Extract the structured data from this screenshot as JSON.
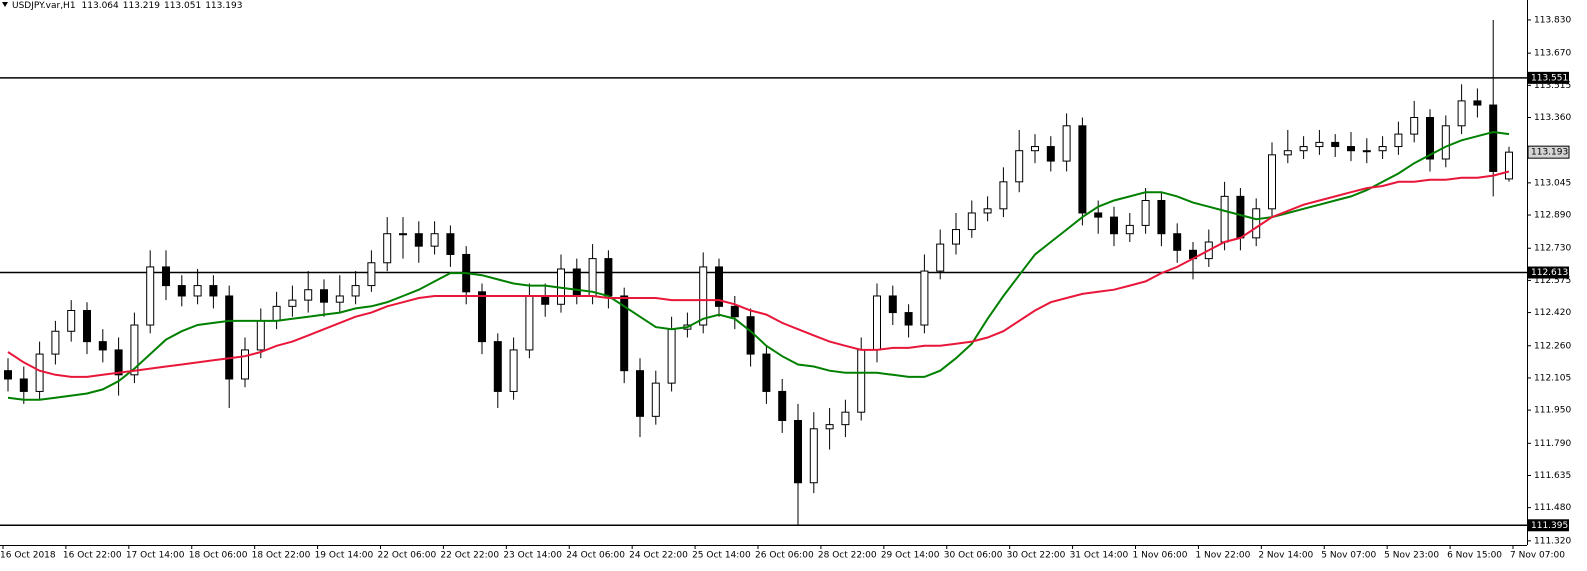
{
  "chart_data": {
    "type": "candlestick",
    "title": "USDJPY.var,H1",
    "readout": [
      113.064,
      113.219,
      113.051,
      113.193
    ],
    "categories": [
      "16 Oct 2018",
      "16 Oct 22:00",
      "17 Oct 14:00",
      "18 Oct 06:00",
      "18 Oct 22:00",
      "19 Oct 14:00",
      "22 Oct 06:00",
      "22 Oct 22:00",
      "23 Oct 14:00",
      "24 Oct 06:00",
      "24 Oct 22:00",
      "25 Oct 14:00",
      "26 Oct 06:00",
      "28 Oct 22:00",
      "29 Oct 14:00",
      "30 Oct 06:00",
      "30 Oct 22:00",
      "31 Oct 14:00",
      "1 Nov 06:00",
      "1 Nov 22:00",
      "2 Nov 14:00",
      "5 Nov 07:00",
      "5 Nov 23:00",
      "6 Nov 15:00",
      "7 Nov 07:00"
    ],
    "open": [
      112.14,
      112.1,
      112.04,
      112.22,
      112.33,
      112.43,
      112.28,
      112.24,
      112.12,
      112.36,
      112.64,
      112.55,
      112.5,
      112.55,
      112.5,
      112.1,
      112.24,
      112.38,
      112.45,
      112.48,
      112.53,
      112.47,
      112.5,
      112.55,
      112.66,
      112.8,
      112.8,
      112.74,
      112.8,
      112.7,
      112.52,
      112.28,
      112.04,
      112.24,
      112.5,
      112.46,
      112.63,
      112.5,
      112.68,
      112.5,
      112.14,
      111.92,
      112.08,
      112.34,
      112.36,
      112.64,
      112.45,
      112.4,
      112.22,
      112.04,
      111.9,
      111.6,
      111.86,
      111.88,
      111.94,
      112.24,
      112.5,
      112.42,
      112.36,
      112.62,
      112.75,
      112.82,
      112.9,
      112.92,
      113.05,
      113.2,
      113.22,
      113.15,
      113.32,
      112.9,
      112.88,
      112.8,
      112.84,
      112.96,
      112.8,
      112.72,
      112.68,
      112.76,
      112.98,
      112.78,
      112.92,
      113.18,
      113.2,
      113.22,
      113.24,
      113.22,
      113.2,
      113.2,
      113.22,
      113.28,
      113.36,
      113.16,
      113.32,
      113.44,
      113.42,
      113.064
    ],
    "high": [
      112.2,
      112.16,
      112.28,
      112.38,
      112.48,
      112.47,
      112.34,
      112.3,
      112.42,
      112.72,
      112.72,
      112.6,
      112.63,
      112.6,
      112.55,
      112.3,
      112.44,
      112.52,
      112.55,
      112.62,
      112.58,
      112.6,
      112.62,
      112.72,
      112.88,
      112.88,
      112.86,
      112.86,
      112.84,
      112.74,
      112.56,
      112.32,
      112.3,
      112.56,
      112.56,
      112.7,
      112.68,
      112.75,
      112.72,
      112.54,
      112.2,
      112.14,
      112.4,
      112.42,
      112.71,
      112.68,
      112.5,
      112.44,
      112.26,
      112.1,
      111.98,
      111.94,
      111.96,
      112.0,
      112.3,
      112.56,
      112.55,
      112.46,
      112.7,
      112.82,
      112.9,
      112.96,
      112.98,
      113.12,
      113.3,
      113.28,
      113.27,
      113.38,
      113.36,
      112.96,
      112.93,
      112.9,
      113.02,
      113.0,
      112.85,
      112.76,
      112.82,
      113.05,
      113.02,
      112.97,
      113.24,
      113.3,
      113.27,
      113.3,
      113.28,
      113.29,
      113.26,
      113.27,
      113.34,
      113.44,
      113.4,
      113.37,
      113.52,
      113.5,
      113.83,
      113.219
    ],
    "low": [
      112.04,
      111.98,
      112.0,
      112.17,
      112.28,
      112.22,
      112.18,
      112.02,
      112.08,
      112.32,
      112.48,
      112.45,
      112.46,
      112.44,
      111.96,
      112.06,
      112.2,
      112.34,
      112.4,
      112.42,
      112.4,
      112.42,
      112.46,
      112.52,
      112.62,
      112.68,
      112.66,
      112.7,
      112.64,
      112.46,
      112.22,
      111.96,
      112.0,
      112.2,
      112.4,
      112.42,
      112.46,
      112.46,
      112.44,
      112.08,
      111.82,
      111.88,
      112.04,
      112.3,
      112.32,
      112.4,
      112.34,
      112.16,
      111.98,
      111.84,
      111.395,
      111.55,
      111.76,
      111.82,
      111.9,
      112.18,
      112.36,
      112.3,
      112.32,
      112.58,
      112.7,
      112.78,
      112.86,
      112.88,
      113.0,
      113.14,
      113.1,
      113.1,
      112.84,
      112.8,
      112.74,
      112.76,
      112.8,
      112.74,
      112.66,
      112.58,
      112.64,
      112.72,
      112.72,
      112.74,
      112.88,
      113.14,
      113.16,
      113.18,
      113.17,
      113.15,
      113.14,
      113.16,
      113.18,
      113.24,
      113.1,
      113.12,
      113.28,
      113.36,
      112.98,
      113.051
    ],
    "close": [
      112.1,
      112.04,
      112.22,
      112.33,
      112.43,
      112.28,
      112.24,
      112.12,
      112.36,
      112.64,
      112.55,
      112.5,
      112.55,
      112.5,
      112.1,
      112.24,
      112.38,
      112.45,
      112.48,
      112.53,
      112.47,
      112.5,
      112.55,
      112.66,
      112.8,
      112.8,
      112.74,
      112.8,
      112.7,
      112.52,
      112.28,
      112.04,
      112.24,
      112.5,
      112.46,
      112.63,
      112.5,
      112.68,
      112.5,
      112.14,
      111.92,
      112.08,
      112.34,
      112.36,
      112.64,
      112.45,
      112.4,
      112.22,
      112.04,
      111.9,
      111.6,
      111.86,
      111.88,
      111.94,
      112.24,
      112.5,
      112.42,
      112.36,
      112.62,
      112.75,
      112.82,
      112.9,
      112.92,
      113.05,
      113.2,
      113.22,
      113.15,
      113.32,
      112.9,
      112.88,
      112.8,
      112.84,
      112.96,
      112.8,
      112.72,
      112.68,
      112.76,
      112.98,
      112.78,
      112.92,
      113.18,
      113.2,
      113.22,
      113.24,
      113.22,
      113.2,
      113.2,
      113.22,
      113.28,
      113.36,
      113.16,
      113.32,
      113.44,
      113.42,
      113.1,
      113.193
    ],
    "up_color": "#ffffff",
    "down_color": "#000000",
    "moving_averages": [
      {
        "color": "#008000",
        "values": [
          112.01,
          112.0,
          112.0,
          112.01,
          112.02,
          112.03,
          112.05,
          112.09,
          112.15,
          112.22,
          112.29,
          112.33,
          112.36,
          112.37,
          112.38,
          112.38,
          112.38,
          112.38,
          112.39,
          112.4,
          112.41,
          112.42,
          112.44,
          112.45,
          112.47,
          112.5,
          112.53,
          112.57,
          112.61,
          112.61,
          112.6,
          112.58,
          112.56,
          112.55,
          112.55,
          112.54,
          112.53,
          112.52,
          112.5,
          112.45,
          112.4,
          112.35,
          112.34,
          112.35,
          112.39,
          112.41,
          112.39,
          112.33,
          112.26,
          112.21,
          112.17,
          112.16,
          112.14,
          112.13,
          112.13,
          112.13,
          112.12,
          112.11,
          112.11,
          112.14,
          112.2,
          112.27,
          112.39,
          112.5,
          112.6,
          112.7,
          112.76,
          112.82,
          112.88,
          112.93,
          112.96,
          112.98,
          113.0,
          113.0,
          112.98,
          112.95,
          112.93,
          112.91,
          112.89,
          112.87,
          112.88,
          112.9,
          112.92,
          112.94,
          112.96,
          112.98,
          113.01,
          113.05,
          113.09,
          113.14,
          113.18,
          113.22,
          113.25,
          113.27,
          113.29,
          113.28
        ]
      },
      {
        "color": "#e8173a",
        "values": [
          112.23,
          112.18,
          112.14,
          112.12,
          112.11,
          112.11,
          112.12,
          112.13,
          112.14,
          112.15,
          112.16,
          112.17,
          112.18,
          112.19,
          112.2,
          112.21,
          112.23,
          112.26,
          112.28,
          112.31,
          112.34,
          112.37,
          112.4,
          112.42,
          112.45,
          112.47,
          112.49,
          112.5,
          112.5,
          112.5,
          112.5,
          112.5,
          112.5,
          112.5,
          112.5,
          112.5,
          112.5,
          112.5,
          112.49,
          112.49,
          112.49,
          112.49,
          112.48,
          112.48,
          112.48,
          112.48,
          112.46,
          112.43,
          112.41,
          112.37,
          112.34,
          112.31,
          112.28,
          112.26,
          112.24,
          112.24,
          112.25,
          112.25,
          112.26,
          112.26,
          112.27,
          112.28,
          112.3,
          112.33,
          112.38,
          112.43,
          112.47,
          112.49,
          112.51,
          112.52,
          112.53,
          112.55,
          112.57,
          112.61,
          112.64,
          112.68,
          112.72,
          112.76,
          112.78,
          112.83,
          112.88,
          112.91,
          112.94,
          112.96,
          112.98,
          113.0,
          113.02,
          113.03,
          113.05,
          113.05,
          113.06,
          113.06,
          113.07,
          113.07,
          113.08,
          113.1
        ]
      }
    ],
    "levels": [
      113.551,
      112.613,
      111.395
    ],
    "current_price": 113.193,
    "ylim": [
      111.3,
      113.878
    ],
    "yticks": [
      {
        "value": 113.83,
        "label": "113.830"
      },
      {
        "value": 113.67,
        "label": "113.670"
      },
      113.515,
      {
        "value": 113.36,
        "label": "113.360"
      },
      113.045,
      {
        "value": 112.89,
        "label": "112.890"
      },
      {
        "value": 112.73,
        "label": "112.730"
      },
      112.575,
      {
        "value": 112.42,
        "label": "112.420"
      },
      {
        "value": 112.26,
        "label": "112.260"
      },
      112.105,
      {
        "value": 111.95,
        "label": "111.950"
      },
      {
        "value": 111.79,
        "label": "111.790"
      },
      111.635,
      {
        "value": 111.48,
        "label": "111.480"
      },
      {
        "value": 111.32,
        "label": "111.320"
      }
    ]
  }
}
